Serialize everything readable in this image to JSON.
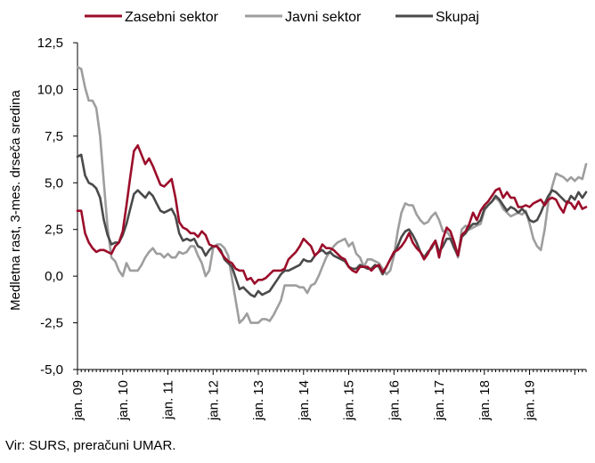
{
  "chart_data": {
    "type": "line",
    "ylabel": "Medletna rast, 3-mes. drseča sredina",
    "ylim": [
      -5,
      12.5
    ],
    "yticks": [
      -5,
      -2.5,
      0,
      2.5,
      5,
      7.5,
      10,
      12.5
    ],
    "ytick_labels": [
      "-5,0",
      "-2,5",
      "0,0",
      "2,5",
      "5,0",
      "7,5",
      "10,0",
      "12,5"
    ],
    "xtick_labels": [
      "jan. 09",
      "jan. 10",
      "jan. 11",
      "jan. 12",
      "jan. 13",
      "jan. 14",
      "jan. 15",
      "jan. 16",
      "jan. 17",
      "jan. 18",
      "jan. 19"
    ],
    "x_start": "2009-01",
    "x_end": "2019-12",
    "grid": false,
    "legend_position": "top",
    "series": [
      {
        "name": "Zasebni sektor",
        "color": "#9b0d2a",
        "values": [
          3.5,
          3.5,
          2.3,
          1.8,
          1.5,
          1.3,
          1.4,
          1.4,
          1.3,
          1.2,
          1.6,
          1.8,
          2.4,
          3.8,
          5.3,
          6.7,
          7.0,
          6.5,
          6.0,
          6.3,
          5.9,
          5.4,
          4.9,
          4.8,
          5.0,
          5.2,
          4.2,
          2.9,
          2.6,
          2.5,
          2.3,
          2.3,
          2.1,
          2.4,
          2.2,
          1.7,
          1.6,
          1.6,
          1.3,
          1.0,
          0.8,
          0.7,
          0.4,
          0.3,
          0.3,
          -0.2,
          -0.1,
          -0.4,
          -0.2,
          -0.2,
          -0.1,
          0.1,
          0.3,
          0.3,
          0.3,
          0.4,
          0.9,
          1.1,
          1.3,
          1.6,
          2.0,
          1.8,
          1.6,
          1.1,
          1.3,
          1.7,
          1.5,
          1.5,
          1.4,
          1.2,
          1.0,
          0.9,
          0.5,
          0.3,
          0.2,
          0.5,
          0.5,
          0.5,
          0.3,
          0.5,
          0.6,
          0.2,
          0.5,
          0.9,
          1.3,
          1.4,
          1.6,
          1.9,
          2.3,
          1.8,
          1.5,
          1.3,
          0.9,
          1.2,
          1.6,
          1.9,
          1.0,
          2.0,
          2.6,
          2.4,
          1.8,
          1.1,
          2.2,
          2.4,
          2.8,
          3.4,
          3.0,
          3.5,
          3.8,
          4.0,
          4.3,
          4.6,
          4.7,
          4.2,
          4.5,
          4.2,
          4.2,
          3.7,
          3.7,
          3.8,
          3.7,
          3.9,
          4.0,
          4.1,
          3.8,
          4.1,
          4.2,
          4.1,
          3.7,
          3.4,
          4.0,
          3.9,
          3.6,
          4.0,
          3.6,
          3.7
        ]
      },
      {
        "name": "Javni sektor",
        "color": "#9e9e9e",
        "values": [
          11.2,
          11.1,
          10.1,
          9.4,
          9.4,
          9.0,
          7.5,
          5.0,
          2.6,
          1.0,
          0.8,
          0.3,
          0.0,
          0.7,
          0.3,
          0.3,
          0.3,
          0.6,
          1.0,
          1.3,
          1.5,
          1.2,
          1.2,
          1.0,
          1.2,
          1.0,
          1.0,
          1.3,
          1.2,
          1.3,
          1.6,
          1.6,
          1.1,
          0.7,
          0.0,
          0.3,
          1.5,
          1.7,
          1.7,
          1.5,
          1.1,
          -0.1,
          -1.3,
          -2.5,
          -2.3,
          -2.0,
          -2.5,
          -2.5,
          -2.5,
          -2.3,
          -2.3,
          -2.4,
          -2.1,
          -1.7,
          -1.3,
          -0.5,
          -0.5,
          -0.5,
          -0.5,
          -0.6,
          -0.6,
          -0.9,
          -0.5,
          -0.4,
          0.0,
          0.5,
          1.0,
          1.3,
          1.6,
          1.8,
          1.9,
          2.0,
          1.6,
          1.8,
          1.2,
          1.0,
          0.5,
          0.9,
          0.9,
          0.8,
          0.7,
          0.4,
          0.1,
          0.3,
          1.1,
          2.4,
          3.4,
          3.9,
          3.8,
          3.8,
          3.3,
          3.0,
          2.8,
          2.9,
          3.2,
          3.4,
          3.0,
          2.4,
          2.4,
          2.1,
          1.6,
          1.0,
          2.5,
          2.7,
          2.5,
          2.6,
          2.7,
          2.8,
          3.5,
          3.8,
          4.0,
          4.2,
          4.0,
          3.6,
          3.4,
          3.2,
          3.3,
          3.4,
          3.3,
          3.5,
          2.8,
          2.0,
          1.6,
          1.4,
          2.5,
          4.0,
          4.8,
          5.5,
          5.4,
          5.3,
          5.1,
          5.3,
          5.1,
          5.3,
          5.2,
          6.0
        ]
      },
      {
        "name": "Skupaj",
        "color": "#4a4a4a",
        "values": [
          6.4,
          6.5,
          5.4,
          5.0,
          4.9,
          4.7,
          4.2,
          3.0,
          2.2,
          1.7,
          1.8,
          1.8,
          2.2,
          2.8,
          3.6,
          4.4,
          4.6,
          4.4,
          4.2,
          4.5,
          4.3,
          3.9,
          3.5,
          3.4,
          3.5,
          3.6,
          3.2,
          2.3,
          1.9,
          2.0,
          1.9,
          2.0,
          1.6,
          1.5,
          1.1,
          1.4,
          1.6,
          1.6,
          1.4,
          0.9,
          0.7,
          0.5,
          -0.1,
          -0.7,
          -0.6,
          -0.8,
          -1.0,
          -1.1,
          -0.8,
          -1.0,
          -0.9,
          -0.8,
          -0.5,
          -0.2,
          0.1,
          0.3,
          0.3,
          0.4,
          0.5,
          0.6,
          0.9,
          0.8,
          0.8,
          1.1,
          1.3,
          1.4,
          1.2,
          1.3,
          1.1,
          1.0,
          0.9,
          0.8,
          0.5,
          0.4,
          0.4,
          0.6,
          0.5,
          0.4,
          0.4,
          0.6,
          0.5,
          0.1,
          0.5,
          0.9,
          1.2,
          1.6,
          2.1,
          2.4,
          2.5,
          2.2,
          1.8,
          1.3,
          1.0,
          1.3,
          1.5,
          1.9,
          1.3,
          1.6,
          2.0,
          2.0,
          1.5,
          1.1,
          2.1,
          2.3,
          2.6,
          2.8,
          2.8,
          3.0,
          3.6,
          3.8,
          4.0,
          4.3,
          4.1,
          3.8,
          3.5,
          3.7,
          3.6,
          3.4,
          3.6,
          3.4,
          3.0,
          2.9,
          3.0,
          3.4,
          3.9,
          4.3,
          4.6,
          4.5,
          4.3,
          4.1,
          3.9,
          4.3,
          4.1,
          4.5,
          4.2,
          4.5
        ]
      }
    ]
  },
  "source_text": "Vir: SURS, preračuni UMAR."
}
